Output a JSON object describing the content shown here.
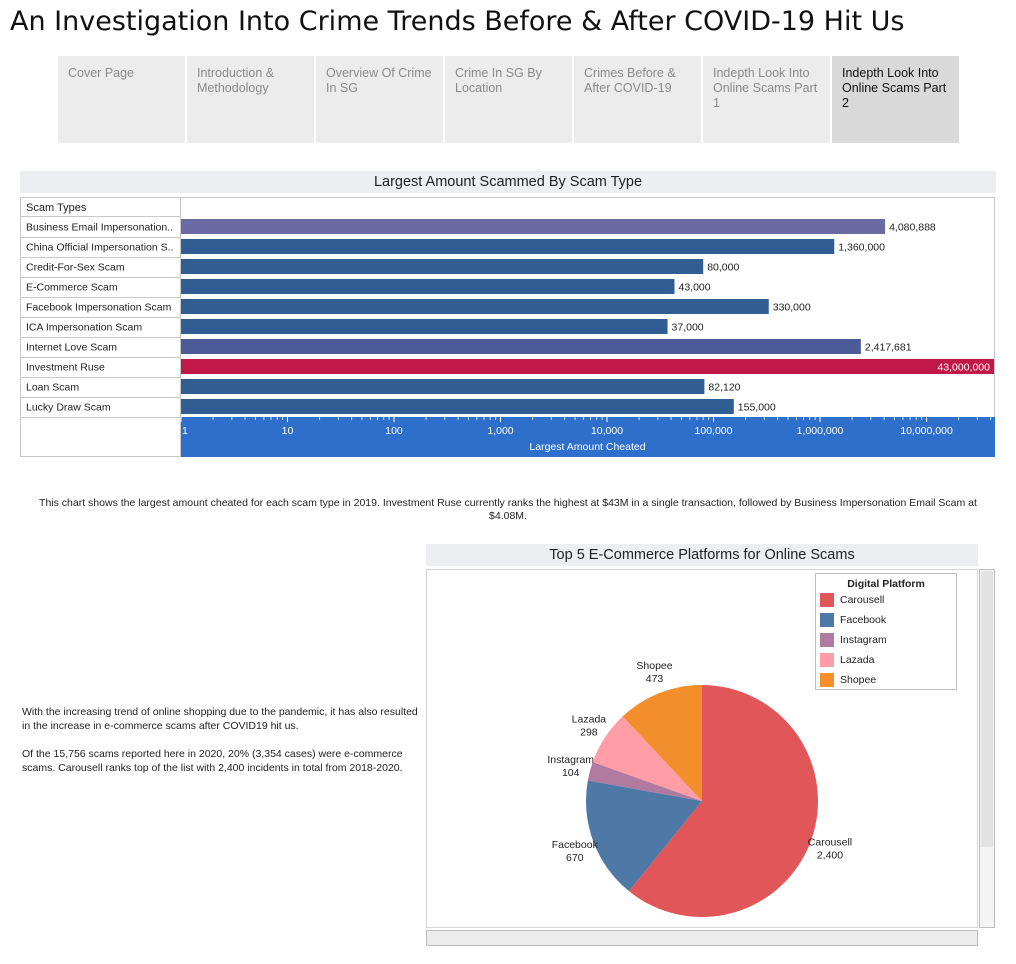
{
  "page_title": "An Investigation Into Crime Trends Before & After COVID-19 Hit Us",
  "tabs": [
    {
      "label": "Cover Page",
      "active": false
    },
    {
      "label": "Introduction & Methodology",
      "active": false
    },
    {
      "label": "Overview Of Crime In SG",
      "active": false
    },
    {
      "label": "Crime In SG By Location",
      "active": false
    },
    {
      "label": "Crimes Before & After COVID-19",
      "active": false
    },
    {
      "label": "Indepth Look Into Online Scams Part 1",
      "active": false
    },
    {
      "label": "Indepth Look Into Online Scams Part 2",
      "active": true
    }
  ],
  "chart_data": [
    {
      "type": "bar",
      "orientation": "horizontal",
      "title": "Largest Amount Scammed By Scam Type",
      "category_header": "Scam Types",
      "xlabel": "Largest Amount Cheated",
      "xscale": "log",
      "xlim": [
        1,
        43000000
      ],
      "xticks": [
        "1",
        "10",
        "100",
        "1,000",
        "10,000",
        "100,000",
        "1,000,000",
        "10,000,000"
      ],
      "categories": [
        "Business Email Impersonation..",
        "China Official Impersonation S..",
        "Credit-For-Sex Scam",
        "E-Commerce Scam",
        "Facebook Impersonation Scam",
        "ICA Impersonation Scam",
        "Internet Love Scam",
        "Investment Ruse",
        "Loan Scam",
        "Lucky Draw Scam"
      ],
      "values": [
        4080888,
        1360000,
        80000,
        43000,
        330000,
        37000,
        2417681,
        43000000,
        82120,
        155000
      ],
      "value_labels": [
        "4,080,888",
        "1,360,000",
        "80,000",
        "43,000",
        "330,000",
        "37,000",
        "2,417,681",
        "43,000,000",
        "82,120",
        "155,000"
      ],
      "colors": [
        "#6b6aa5",
        "#305e93",
        "#305e93",
        "#305e93",
        "#305e93",
        "#305e93",
        "#4a5b98",
        "#c1184a",
        "#305e93",
        "#305e93"
      ]
    },
    {
      "type": "pie",
      "title": "Top 5 E-Commerce Platforms for Online Scams",
      "legend_title": "Digital Platform",
      "legend_position": "top-right",
      "slices": [
        {
          "label": "Carousell",
          "value": 2400,
          "value_label": "2,400",
          "color": "#e15759"
        },
        {
          "label": "Facebook",
          "value": 670,
          "value_label": "670",
          "color": "#4e79a7"
        },
        {
          "label": "Instagram",
          "value": 104,
          "value_label": "104",
          "color": "#b07aa1"
        },
        {
          "label": "Lazada",
          "value": 298,
          "value_label": "298",
          "color": "#ff9da7"
        },
        {
          "label": "Shopee",
          "value": 473,
          "value_label": "473",
          "color": "#f28e2b"
        }
      ]
    }
  ],
  "descriptions": {
    "bar_chart": "This chart shows the largest amount cheated for each scam type in 2019. Investment Ruse currently ranks the highest at $43M in a single transaction, followed by Business Impersonation Email Scam at $4.08M.",
    "pie_p1": "With the increasing trend of online shopping due to the pandemic, it has also resulted in the increase in e-commerce scams after COVID19 hit us.",
    "pie_p2": "Of the 15,756 scams reported here in 2020, 20% (3,354 cases) were e-commerce scams. Carousell ranks top of the list with 2,400 incidents in total from 2018-2020."
  }
}
